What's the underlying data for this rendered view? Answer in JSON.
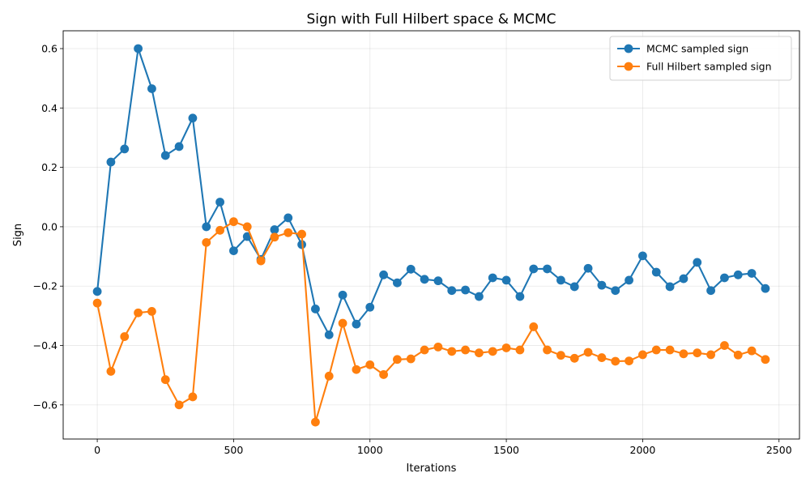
{
  "chart_data": {
    "type": "line",
    "title": "Sign with Full Hilbert space & MCMC",
    "xlabel": "Iterations",
    "ylabel": "Sign",
    "xlim": [
      -125,
      2575
    ],
    "ylim": [
      -0.715,
      0.66
    ],
    "xticks": [
      0,
      500,
      1000,
      1500,
      2000,
      2500
    ],
    "xtick_labels": [
      "0",
      "500",
      "1000",
      "1500",
      "2000",
      "2500"
    ],
    "yticks": [
      -0.6,
      -0.4,
      -0.2,
      0.0,
      0.2,
      0.4,
      0.6
    ],
    "ytick_labels": [
      "−0.6",
      "−0.4",
      "−0.2",
      "0.0",
      "0.2",
      "0.4",
      "0.6"
    ],
    "grid": true,
    "legend_position": "top-right",
    "x": [
      0,
      50,
      100,
      150,
      200,
      250,
      300,
      350,
      400,
      450,
      500,
      550,
      600,
      650,
      700,
      750,
      800,
      850,
      900,
      950,
      1000,
      1050,
      1100,
      1150,
      1200,
      1250,
      1300,
      1350,
      1400,
      1450,
      1500,
      1550,
      1600,
      1650,
      1700,
      1750,
      1800,
      1850,
      1900,
      1950,
      2000,
      2050,
      2100,
      2150,
      2200,
      2250,
      2300,
      2350,
      2400,
      2450
    ],
    "series": [
      {
        "name": "MCMC sampled sign",
        "color": "#1f77b4",
        "values": [
          -0.218,
          0.218,
          0.262,
          0.6,
          0.465,
          0.24,
          0.27,
          0.366,
          0.0,
          0.083,
          -0.081,
          -0.033,
          -0.11,
          -0.01,
          0.03,
          -0.06,
          -0.277,
          -0.364,
          -0.23,
          -0.328,
          -0.271,
          -0.162,
          -0.189,
          -0.143,
          -0.177,
          -0.182,
          -0.215,
          -0.213,
          -0.235,
          -0.172,
          -0.18,
          -0.235,
          -0.142,
          -0.142,
          -0.18,
          -0.202,
          -0.14,
          -0.197,
          -0.215,
          -0.18,
          -0.098,
          -0.153,
          -0.202,
          -0.175,
          -0.12,
          -0.215,
          -0.172,
          -0.162,
          -0.157,
          -0.208
        ]
      },
      {
        "name": "Full Hilbert sampled sign",
        "color": "#ff7f0e",
        "values": [
          -0.257,
          -0.487,
          -0.37,
          -0.29,
          -0.285,
          -0.515,
          -0.6,
          -0.573,
          -0.053,
          -0.012,
          0.017,
          0.0,
          -0.115,
          -0.035,
          -0.02,
          -0.025,
          -0.658,
          -0.503,
          -0.325,
          -0.481,
          -0.465,
          -0.498,
          -0.447,
          -0.445,
          -0.415,
          -0.405,
          -0.42,
          -0.415,
          -0.425,
          -0.42,
          -0.408,
          -0.415,
          -0.337,
          -0.415,
          -0.433,
          -0.443,
          -0.423,
          -0.441,
          -0.453,
          -0.452,
          -0.431,
          -0.415,
          -0.415,
          -0.428,
          -0.425,
          -0.431,
          -0.4,
          -0.432,
          -0.418,
          -0.447
        ]
      }
    ]
  }
}
